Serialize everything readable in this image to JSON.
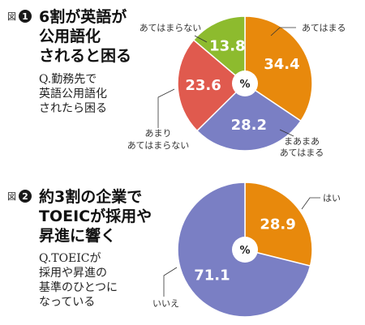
{
  "chart_data": [
    {
      "type": "pie",
      "fig_label": "図",
      "fig_number": "1",
      "title_lines": [
        "6割が英語が",
        "公用語化",
        "されると困る"
      ],
      "question_lines": [
        "Q.勤務先で",
        "英語公用語化",
        "されたら困る"
      ],
      "center_label": "%",
      "slices": [
        {
          "label": "あてはまる",
          "value": 34.4,
          "value_text": "34.4",
          "color": "#e8890c"
        },
        {
          "label_lines": [
            "まあまあ",
            "あてはまる"
          ],
          "value": 28.2,
          "value_text": "28.2",
          "color": "#7a7fc4"
        },
        {
          "label_lines": [
            "あまり",
            "あてはまらない"
          ],
          "value": 23.6,
          "value_text": "23.6",
          "color": "#e05a4e"
        },
        {
          "label": "あてはまらない",
          "value": 13.8,
          "value_text": "13.8",
          "color": "#8dbb2e"
        }
      ]
    },
    {
      "type": "pie",
      "fig_label": "図",
      "fig_number": "2",
      "title_lines": [
        "約3割の企業で",
        "TOEICが採用や",
        "昇進に響く"
      ],
      "question_lines": [
        "Q.TOEICが",
        "採用や昇進の",
        "基準のひとつに",
        "なっている"
      ],
      "center_label": "%",
      "slices": [
        {
          "label": "はい",
          "value": 28.9,
          "value_text": "28.9",
          "color": "#e8890c"
        },
        {
          "label": "いいえ",
          "value": 71.1,
          "value_text": "71.1",
          "color": "#7a7fc4"
        }
      ]
    }
  ]
}
